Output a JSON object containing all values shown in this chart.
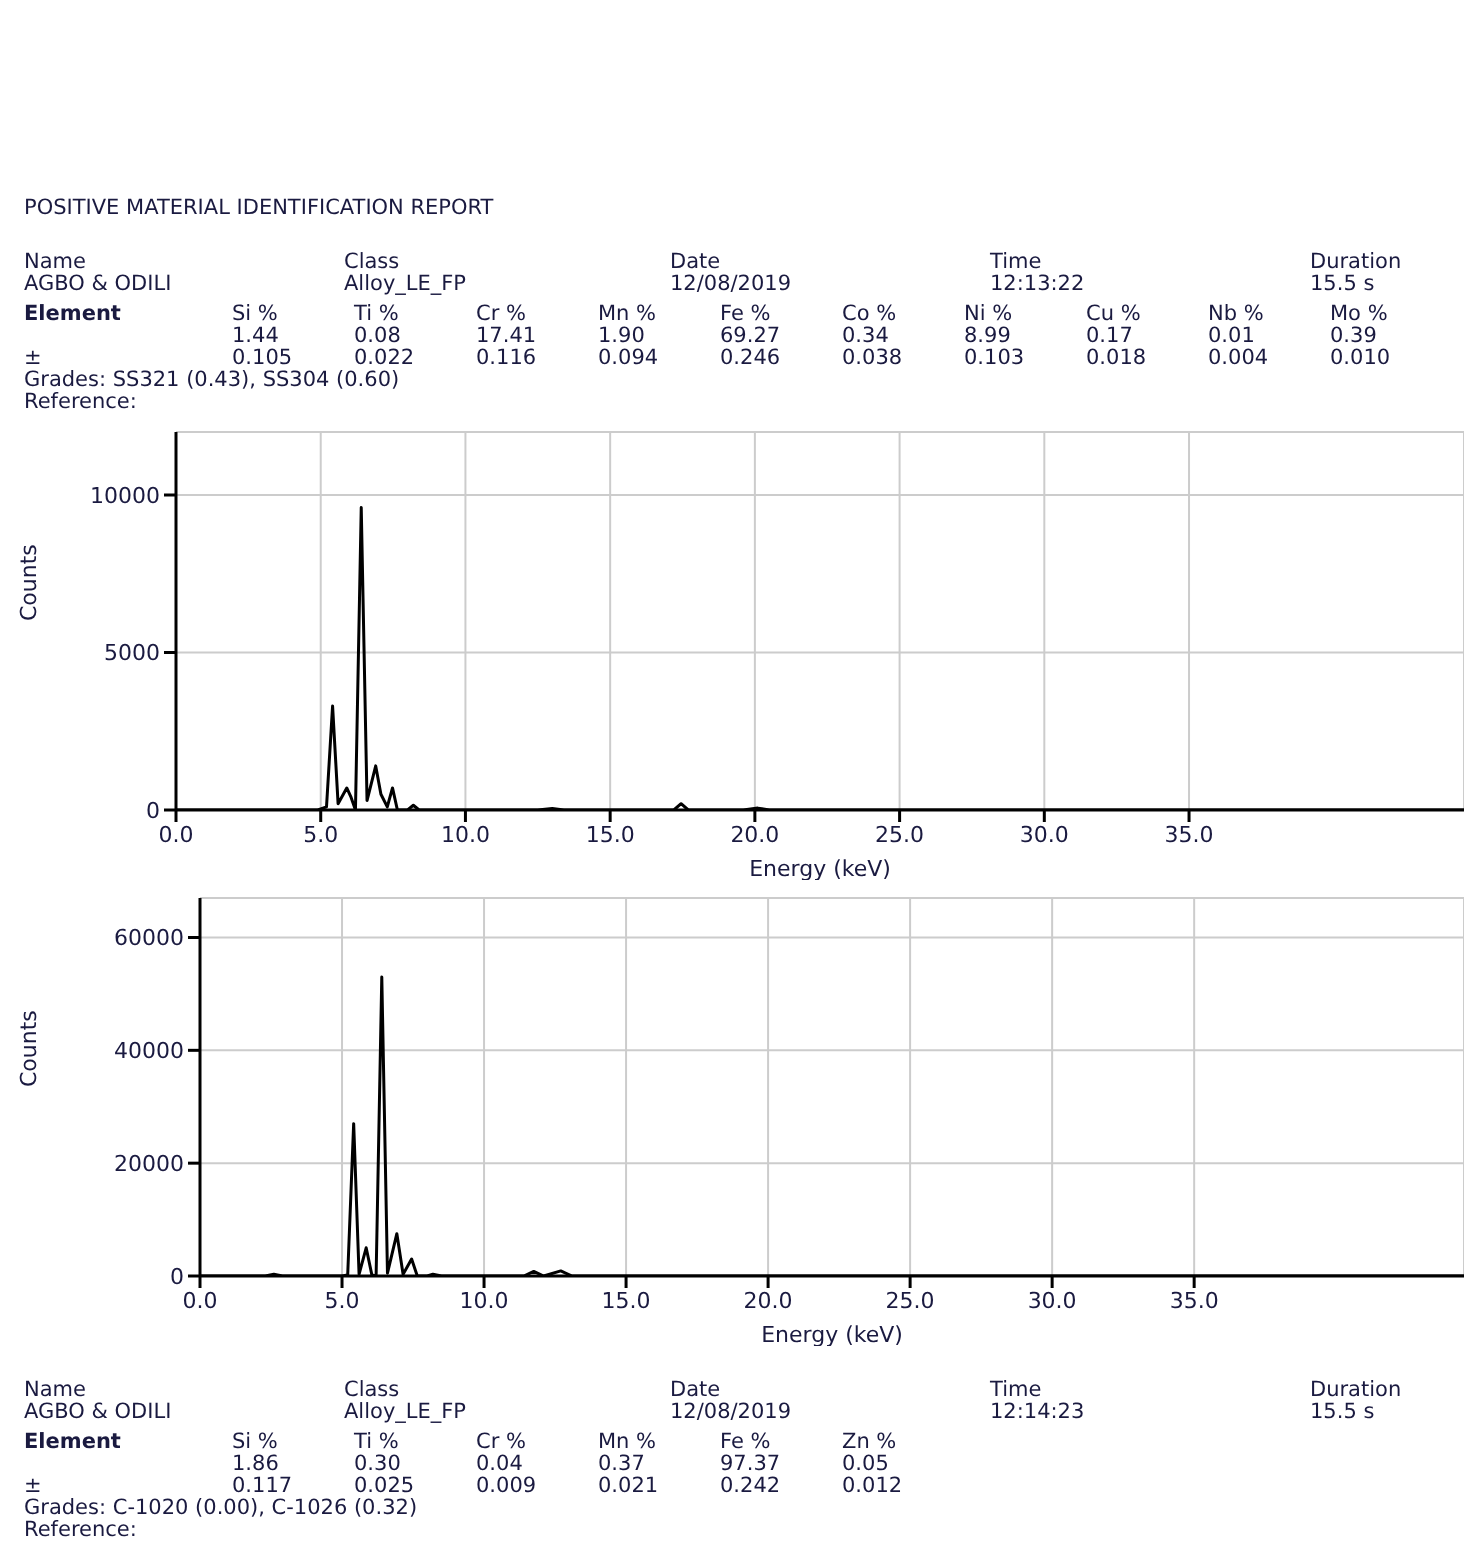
{
  "chart_data": [
    {
      "type": "line",
      "title": "POSITIVE MATERIAL IDENTIFICATION REPORT",
      "xlabel": "Energy (keV)",
      "ylabel": "Counts",
      "xlim": [
        0,
        44.5
      ],
      "xticks": [
        {
          "value": 0,
          "label": "0.0"
        },
        {
          "value": 5,
          "label": "5.0"
        },
        {
          "value": 10,
          "label": "10.0"
        },
        {
          "value": 15,
          "label": "15.0"
        },
        {
          "value": 20,
          "label": "20.0"
        },
        {
          "value": 25,
          "label": "25.0"
        },
        {
          "value": 30,
          "label": "30.0"
        },
        {
          "value": 35,
          "label": "35.0"
        }
      ],
      "ylim": [
        0,
        12000
      ],
      "yticks": [
        0,
        5000,
        10000
      ],
      "grid": true,
      "annotations": [
        "Name",
        "AGBO & ODILI",
        "Class",
        "Alloy_LE_FP",
        "Date",
        "12/08/2019",
        "Time",
        "12:13:22",
        "Duration",
        "15.5 s",
        "Element",
        "±",
        "Si %",
        "1.44",
        "0.105",
        "Ti %",
        "0.08",
        "0.022",
        "Cr %",
        "17.41",
        "0.116",
        "Mn %",
        "1.90",
        "0.094",
        "Fe %",
        "69.27",
        "0.246",
        "Co %",
        "0.34",
        "0.038",
        "Ni %",
        "8.99",
        "0.103",
        "Cu %",
        "0.17",
        "0.018",
        "Nb %",
        "0.01",
        "0.004",
        "Mo %",
        "0.39",
        "0.010",
        "Grades: SS321 (0.43), SS304 (0.60)",
        "Reference:"
      ],
      "series": [
        {
          "color": "#000000",
          "x": [
            0,
            3.5,
            4.9,
            5.2,
            5.41,
            5.6,
            5.9,
            6.05,
            6.2,
            6.4,
            6.6,
            6.9,
            7.08,
            7.3,
            7.48,
            7.65,
            8.0,
            8.2,
            8.4,
            12.5,
            13,
            13.4,
            17.2,
            17.45,
            17.7,
            19.6,
            20.1,
            20.5,
            44.5
          ],
          "values": [
            0,
            0,
            0,
            100,
            3300,
            200,
            700,
            400,
            0,
            9600,
            300,
            1400,
            500,
            100,
            700,
            0,
            0,
            150,
            0,
            0,
            50,
            0,
            0,
            200,
            0,
            0,
            60,
            0,
            0
          ]
        }
      ]
    },
    {
      "type": "line",
      "xlabel": "Energy (keV)",
      "ylabel": "Counts",
      "xlim": [
        0,
        44.5
      ],
      "xticks": [
        {
          "value": 0,
          "label": "0.0"
        },
        {
          "value": 5,
          "label": "5.0"
        },
        {
          "value": 10,
          "label": "10.0"
        },
        {
          "value": 15,
          "label": "15.0"
        },
        {
          "value": 20,
          "label": "20.0"
        },
        {
          "value": 25,
          "label": "25.0"
        },
        {
          "value": 30,
          "label": "30.0"
        },
        {
          "value": 35,
          "label": "35.0"
        }
      ],
      "ylim": [
        0,
        67000
      ],
      "yticks": [
        0,
        20000,
        40000,
        60000
      ],
      "grid": true,
      "annotations": [
        "Name",
        "AGBO & ODILI",
        "Class",
        "Alloy_LE_FP",
        "Date",
        "12/08/2019",
        "Time",
        "12:14:23",
        "Duration",
        "15.5 s",
        "Element",
        "±",
        "Si %",
        "1.86",
        "0.117",
        "Ti %",
        "0.30",
        "0.025",
        "Cr %",
        "0.04",
        "0.009",
        "Mn %",
        "0.37",
        "0.021",
        "Fe %",
        "97.37",
        "0.242",
        "Zn %",
        "0.05",
        "0.012",
        "Grades: C-1020 (0.00), C-1026 (0.32)",
        "Reference:"
      ],
      "series": [
        {
          "color": "#000000",
          "x": [
            0,
            2.3,
            2.6,
            2.9,
            5.0,
            5.2,
            5.41,
            5.6,
            5.85,
            6.05,
            6.2,
            6.4,
            6.6,
            6.93,
            7.15,
            7.45,
            7.65,
            8.0,
            8.2,
            8.5,
            11.4,
            11.75,
            12.1,
            12.7,
            13.1,
            44.5
          ],
          "values": [
            0,
            0,
            300,
            0,
            0,
            200,
            27000,
            300,
            5000,
            200,
            0,
            53000,
            500,
            7500,
            300,
            3000,
            0,
            0,
            300,
            0,
            0,
            800,
            0,
            900,
            0,
            0
          ]
        }
      ]
    }
  ]
}
